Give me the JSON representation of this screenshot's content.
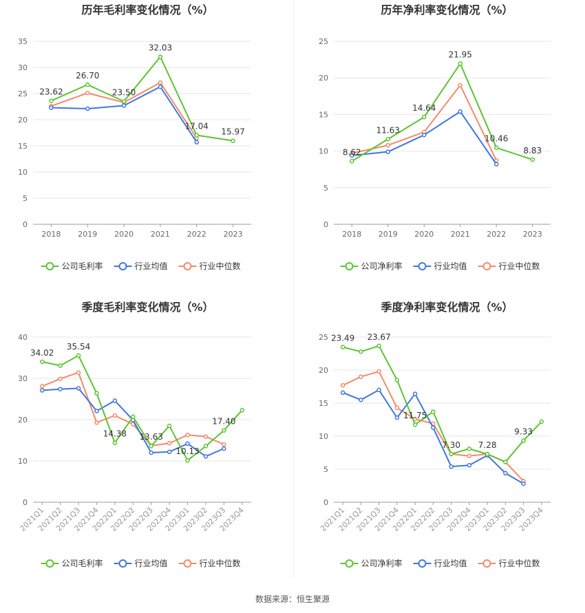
{
  "colors": {
    "company": "#5cc431",
    "avg": "#3f76e0",
    "median": "#f4896a",
    "grid": "#e6e6e6",
    "axis": "#999999",
    "text": "#666666"
  },
  "source": "数据来源：恒生聚源",
  "chart_data": [
    {
      "type": "line",
      "title": "历年毛利率变化情况（%）",
      "categories": [
        "2018",
        "2019",
        "2020",
        "2021",
        "2022",
        "2023"
      ],
      "ylim": [
        0,
        35
      ],
      "yticks": [
        0,
        5,
        10,
        15,
        20,
        25,
        30,
        35
      ],
      "grid": true,
      "legend": "bottom",
      "series": [
        {
          "name": "公司毛利率",
          "color": "#5cc431",
          "values": [
            23.62,
            26.7,
            23.5,
            32.03,
            17.04,
            15.97
          ],
          "labels": [
            "23.62",
            "26.70",
            "23.50",
            "32.03",
            "17.04",
            "15.97"
          ]
        },
        {
          "name": "行业均值",
          "color": "#3f76e0",
          "values": [
            22.3,
            22.1,
            22.7,
            26.3,
            15.7,
            null
          ]
        },
        {
          "name": "行业中位数",
          "color": "#f4896a",
          "values": [
            22.6,
            25.1,
            23.3,
            27.1,
            16.5,
            null
          ]
        }
      ]
    },
    {
      "type": "line",
      "title": "历年净利率变化情况（%）",
      "categories": [
        "2018",
        "2019",
        "2020",
        "2021",
        "2022",
        "2023"
      ],
      "ylim": [
        0,
        25
      ],
      "yticks": [
        0,
        5,
        10,
        15,
        20,
        25
      ],
      "grid": true,
      "legend": "bottom",
      "series": [
        {
          "name": "公司净利率",
          "color": "#5cc431",
          "values": [
            8.62,
            11.63,
            14.64,
            21.95,
            10.46,
            8.83
          ],
          "labels": [
            "8.62",
            "11.63",
            "14.64",
            "21.95",
            "10.46",
            "8.83"
          ]
        },
        {
          "name": "行业均值",
          "color": "#3f76e0",
          "values": [
            9.4,
            9.9,
            12.2,
            15.4,
            8.2,
            null
          ]
        },
        {
          "name": "行业中位数",
          "color": "#f4896a",
          "values": [
            9.7,
            10.8,
            12.6,
            19.0,
            8.7,
            null
          ]
        }
      ]
    },
    {
      "type": "line",
      "title": "季度毛利率变化情况（%）",
      "categories": [
        "2021Q1",
        "2021Q2",
        "2021Q3",
        "2021Q4",
        "2022Q1",
        "2022Q2",
        "2022Q3",
        "2022Q4",
        "2023Q1",
        "2023Q2",
        "2023Q3",
        "2023Q4"
      ],
      "ylim": [
        0,
        40
      ],
      "yticks": [
        0,
        10,
        20,
        30,
        40
      ],
      "grid": true,
      "legend": "bottom",
      "series": [
        {
          "name": "公司毛利率",
          "color": "#5cc431",
          "values": [
            34.02,
            33.1,
            35.54,
            26.4,
            14.38,
            20.7,
            13.63,
            18.5,
            10.13,
            13.6,
            17.4,
            22.3
          ],
          "labels": [
            "34.02",
            "",
            "35.54",
            "",
            "14.38",
            "",
            "13.63",
            "",
            "10.13",
            "",
            "17.40",
            ""
          ]
        },
        {
          "name": "行业均值",
          "color": "#3f76e0",
          "values": [
            27.1,
            27.4,
            27.6,
            22.1,
            24.6,
            19.9,
            12.0,
            12.2,
            14.2,
            11.1,
            13.0,
            null
          ]
        },
        {
          "name": "行业中位数",
          "color": "#f4896a",
          "values": [
            28.1,
            29.9,
            31.4,
            19.3,
            21.0,
            18.9,
            13.7,
            14.3,
            16.3,
            15.9,
            14.0,
            null
          ]
        }
      ]
    },
    {
      "type": "line",
      "title": "季度净利率变化情况（%）",
      "categories": [
        "2021Q1",
        "2021Q2",
        "2021Q3",
        "2021Q4",
        "2022Q1",
        "2022Q2",
        "2022Q3",
        "2022Q4",
        "2023Q1",
        "2023Q2",
        "2023Q3",
        "2023Q4"
      ],
      "ylim": [
        0,
        25
      ],
      "yticks": [
        0,
        5,
        10,
        15,
        20,
        25
      ],
      "grid": true,
      "legend": "bottom",
      "series": [
        {
          "name": "公司净利率",
          "color": "#5cc431",
          "values": [
            23.49,
            22.8,
            23.67,
            18.5,
            11.75,
            13.7,
            7.3,
            8.1,
            7.28,
            6.1,
            9.33,
            12.2
          ],
          "labels": [
            "23.49",
            "",
            "23.67",
            "",
            "11.75",
            "",
            "7.30",
            "",
            "7.28",
            "",
            "9.33",
            ""
          ]
        },
        {
          "name": "行业均值",
          "color": "#3f76e0",
          "values": [
            16.6,
            15.5,
            17.0,
            12.8,
            16.4,
            11.3,
            5.4,
            5.6,
            7.1,
            4.4,
            2.8,
            null
          ]
        },
        {
          "name": "行业中位数",
          "color": "#f4896a",
          "values": [
            17.7,
            19.0,
            19.8,
            14.3,
            12.6,
            11.9,
            7.3,
            7.0,
            7.3,
            6.1,
            3.2,
            null
          ]
        }
      ]
    }
  ]
}
